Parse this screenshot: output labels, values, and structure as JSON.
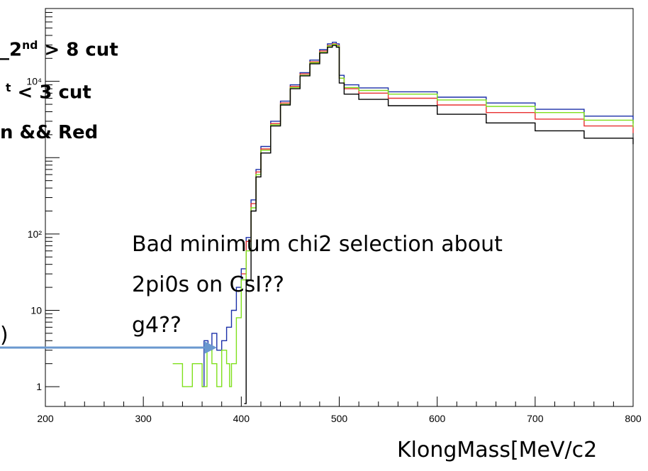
{
  "chart_data": {
    "type": "line",
    "title": "",
    "xlabel": "KlongMass[MeV/c2",
    "ylabel": "",
    "xlim": [
      200,
      800
    ],
    "ylim": [
      0.55,
      90000
    ],
    "yscale": "log",
    "x_ticks": [
      "200",
      "300",
      "400",
      "500",
      "600",
      "700",
      "800"
    ],
    "y_ticks": [
      {
        "value": 1,
        "label": "1"
      },
      {
        "value": 10,
        "label": "10"
      },
      {
        "value": 100,
        "label": "10²"
      },
      {
        "value": 10000,
        "label": "10⁴"
      }
    ],
    "grid": false,
    "series": [
      {
        "color": "#1a2fa8",
        "points": [
          [
            360,
            1
          ],
          [
            362,
            4
          ],
          [
            366,
            3
          ],
          [
            370,
            5
          ],
          [
            375,
            3
          ],
          [
            380,
            4
          ],
          [
            385,
            6
          ],
          [
            390,
            10
          ],
          [
            395,
            20
          ],
          [
            400,
            35
          ],
          [
            405,
            90
          ],
          [
            410,
            280
          ],
          [
            415,
            700
          ],
          [
            420,
            1400
          ],
          [
            430,
            3000
          ],
          [
            440,
            5500
          ],
          [
            450,
            9000
          ],
          [
            460,
            13000
          ],
          [
            470,
            19000
          ],
          [
            480,
            26000
          ],
          [
            488,
            31000
          ],
          [
            493,
            32500
          ],
          [
            497,
            31000
          ],
          [
            500,
            12000
          ],
          [
            505,
            9000
          ],
          [
            520,
            8200
          ],
          [
            550,
            7300
          ],
          [
            600,
            6200
          ],
          [
            650,
            5200
          ],
          [
            700,
            4300
          ],
          [
            750,
            3500
          ],
          [
            800,
            2800
          ]
        ]
      },
      {
        "color": "#e83030",
        "points": [
          [
            400,
            30
          ],
          [
            405,
            80
          ],
          [
            410,
            250
          ],
          [
            415,
            650
          ],
          [
            420,
            1300
          ],
          [
            430,
            2800
          ],
          [
            440,
            5200
          ],
          [
            450,
            8600
          ],
          [
            460,
            12500
          ],
          [
            470,
            18000
          ],
          [
            480,
            25000
          ],
          [
            488,
            29500
          ],
          [
            493,
            31000
          ],
          [
            497,
            29500
          ],
          [
            500,
            11000
          ],
          [
            505,
            8000
          ],
          [
            520,
            7000
          ],
          [
            550,
            6000
          ],
          [
            600,
            4900
          ],
          [
            650,
            3900
          ],
          [
            700,
            3200
          ],
          [
            750,
            2600
          ],
          [
            800,
            2100
          ]
        ]
      },
      {
        "color": "#7fe01c",
        "points": [
          [
            330,
            2
          ],
          [
            340,
            1
          ],
          [
            350,
            2
          ],
          [
            360,
            1
          ],
          [
            365,
            3
          ],
          [
            370,
            2
          ],
          [
            375,
            1
          ],
          [
            380,
            3
          ],
          [
            385,
            2
          ],
          [
            388,
            1
          ],
          [
            390,
            2
          ],
          [
            395,
            8
          ],
          [
            400,
            25
          ],
          [
            405,
            60
          ],
          [
            410,
            220
          ],
          [
            415,
            600
          ],
          [
            420,
            1250
          ],
          [
            430,
            2700
          ],
          [
            440,
            5000
          ],
          [
            450,
            8300
          ],
          [
            460,
            12000
          ],
          [
            470,
            17500
          ],
          [
            480,
            24000
          ],
          [
            488,
            29000
          ],
          [
            493,
            30500
          ],
          [
            497,
            29000
          ],
          [
            500,
            11000
          ],
          [
            505,
            8300
          ],
          [
            520,
            7600
          ],
          [
            550,
            6800
          ],
          [
            600,
            5700
          ],
          [
            650,
            4700
          ],
          [
            700,
            3900
          ],
          [
            750,
            3100
          ],
          [
            800,
            2500
          ]
        ]
      },
      {
        "color": "#000000",
        "points": [
          [
            403,
            0.6
          ],
          [
            405,
            25
          ],
          [
            410,
            200
          ],
          [
            415,
            560
          ],
          [
            420,
            1150
          ],
          [
            430,
            2600
          ],
          [
            440,
            4900
          ],
          [
            450,
            8000
          ],
          [
            460,
            11800
          ],
          [
            470,
            17000
          ],
          [
            480,
            23500
          ],
          [
            488,
            28000
          ],
          [
            493,
            29500
          ],
          [
            497,
            28000
          ],
          [
            500,
            9500
          ],
          [
            505,
            6800
          ],
          [
            520,
            5800
          ],
          [
            550,
            4800
          ],
          [
            600,
            3700
          ],
          [
            650,
            2850
          ],
          [
            700,
            2250
          ],
          [
            750,
            1800
          ],
          [
            800,
            1500
          ]
        ]
      }
    ]
  },
  "overlay": {
    "line1_pre": "_2",
    "line1_sup": "nd",
    "line1_post": " > 8 cut",
    "line2_sup": "t",
    "line2_post": " < 3 cut",
    "line3": "n && Red",
    "left_paren": ")",
    "annotation": [
      "Bad minimum chi2 selection about",
      "2pi0s on CsI??",
      "g4??"
    ],
    "arrow_color": "#6a98cf"
  }
}
